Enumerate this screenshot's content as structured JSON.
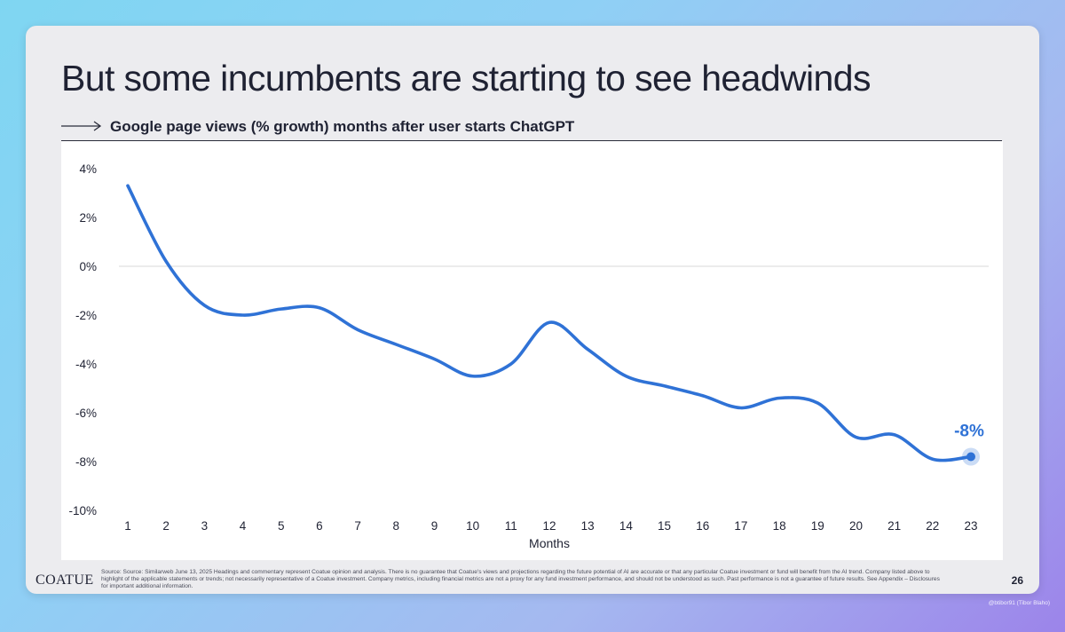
{
  "slide": {
    "title": "But some incumbents are starting to see headwinds",
    "subtitle": "Google page views (% growth) months after user starts ChatGPT",
    "arrow_icon": "long-right-arrow-icon",
    "logo_text": "COATUE",
    "page_number": "26",
    "source_text": "Source: Source: Similarweb June 13, 2025 Headings and commentary represent Coatue opinion and analysis. There is no guarantee that Coatue's views and projections regarding the future potential of AI are accurate or that any particular Coatue investment or fund will benefit from the AI trend. Company listed above to highlight of the applicable statements or trends; not necessarily representative of a Coatue investment.  Company metrics, including financial metrics are not a proxy for any fund investment performance, and should not be understood as such. Past performance is not a guarantee of future results. See Appendix – Disclosures for important additional information.",
    "watermark": "@btibor91 (Tibor Blaho)"
  },
  "colors": {
    "line": "#2f72d6",
    "end_label": "#2f72d6",
    "zero_line": "#d9d9d9",
    "text": "#1f2233"
  },
  "chart_data": {
    "type": "line",
    "title": "Google page views (% growth) months after user starts ChatGPT",
    "xlabel": "Months",
    "ylabel": "",
    "x": [
      1,
      2,
      3,
      4,
      5,
      6,
      7,
      8,
      9,
      10,
      11,
      12,
      13,
      14,
      15,
      16,
      17,
      18,
      19,
      20,
      21,
      22,
      23
    ],
    "series": [
      {
        "values": [
          3.3,
          0.2,
          -1.6,
          -2.0,
          -1.75,
          -1.7,
          -2.6,
          -3.2,
          -3.8,
          -4.5,
          -4.0,
          -2.3,
          -3.4,
          -4.5,
          -4.9,
          -5.3,
          -5.8,
          -5.4,
          -5.6,
          -7.0,
          -6.9,
          -7.9,
          -7.8
        ]
      }
    ],
    "ylim": [
      -10,
      4
    ],
    "yticks": [
      4,
      2,
      0,
      -2,
      -4,
      -6,
      -8,
      -10
    ],
    "ytick_labels": [
      "4%",
      "2%",
      "0%",
      "-2%",
      "-4%",
      "-6%",
      "-8%",
      "-10%"
    ],
    "xtick_labels": [
      "1",
      "2",
      "3",
      "4",
      "5",
      "6",
      "7",
      "8",
      "9",
      "10",
      "11",
      "12",
      "13",
      "14",
      "15",
      "16",
      "17",
      "18",
      "19",
      "20",
      "21",
      "22",
      "23"
    ],
    "end_label": "-8%",
    "zero_line": true,
    "grid": false,
    "legend": "none"
  }
}
